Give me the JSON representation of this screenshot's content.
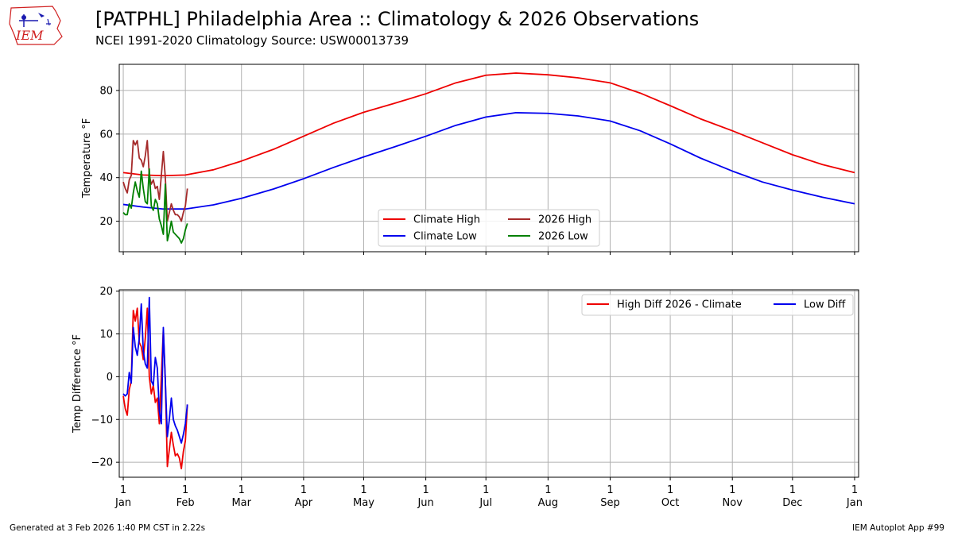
{
  "header": {
    "title": "[PATPHL] Philadelphia Area :: Climatology & 2026 Observations",
    "subtitle": "NCEI 1991-2020 Climatology Source: USW00013739",
    "logo_text": "IEM"
  },
  "footer": {
    "left": "Generated at 3 Feb 2026 1:40 PM CST in 2.22s",
    "right": "IEM Autoplot App #99"
  },
  "colors": {
    "climate_high": "#ee0000",
    "climate_low": "#0000ee",
    "obs_high": "#a52a2a",
    "obs_low": "#008000",
    "grid": "#b0b0b0"
  },
  "chart_data": [
    {
      "type": "line",
      "ylabel": "Temperature °F",
      "ylim": [
        6,
        92
      ],
      "yticks": [
        20,
        40,
        60,
        80
      ],
      "xlim": [
        -2,
        367
      ],
      "grid": true,
      "legend_position": "lower-center",
      "legend_columns": 2,
      "x_ticks": [
        {
          "day": 0,
          "label": "1",
          "month": "Jan"
        },
        {
          "day": 31,
          "label": "1",
          "month": "Feb"
        },
        {
          "day": 59,
          "label": "1",
          "month": "Mar"
        },
        {
          "day": 90,
          "label": "1",
          "month": "Apr"
        },
        {
          "day": 120,
          "label": "1",
          "month": "May"
        },
        {
          "day": 151,
          "label": "1",
          "month": "Jun"
        },
        {
          "day": 181,
          "label": "1",
          "month": "Jul"
        },
        {
          "day": 212,
          "label": "1",
          "month": "Aug"
        },
        {
          "day": 243,
          "label": "1",
          "month": "Sep"
        },
        {
          "day": 273,
          "label": "1",
          "month": "Oct"
        },
        {
          "day": 304,
          "label": "1",
          "month": "Nov"
        },
        {
          "day": 334,
          "label": "1",
          "month": "Dec"
        },
        {
          "day": 365,
          "label": "1",
          "month": "Jan"
        }
      ],
      "series": [
        {
          "name": "Climate High",
          "color_key": "climate_high",
          "x": [
            0,
            10,
            20,
            31,
            45,
            59,
            75,
            90,
            105,
            120,
            135,
            151,
            166,
            181,
            196,
            212,
            227,
            243,
            258,
            273,
            288,
            304,
            319,
            334,
            349,
            365
          ],
          "y": [
            42.3,
            41.2,
            40.9,
            41.2,
            43.6,
            47.6,
            53.0,
            59.0,
            65.0,
            70.0,
            74.0,
            78.5,
            83.5,
            87.0,
            88.0,
            87.2,
            85.8,
            83.5,
            78.8,
            73.0,
            67.0,
            61.5,
            56.0,
            50.5,
            46.0,
            42.3
          ]
        },
        {
          "name": "Climate Low",
          "color_key": "climate_low",
          "x": [
            0,
            10,
            20,
            31,
            45,
            59,
            75,
            90,
            105,
            120,
            135,
            151,
            166,
            181,
            196,
            212,
            227,
            243,
            258,
            273,
            288,
            304,
            319,
            334,
            349,
            365
          ],
          "y": [
            27.7,
            26.5,
            25.6,
            25.6,
            27.5,
            30.5,
            34.8,
            39.5,
            44.7,
            49.5,
            54.0,
            59.0,
            64.0,
            67.8,
            69.8,
            69.5,
            68.3,
            66.0,
            61.5,
            55.5,
            49.0,
            43.0,
            38.0,
            34.3,
            31.0,
            28.0
          ]
        },
        {
          "name": "2026 High",
          "color_key": "obs_high",
          "x": [
            0,
            1,
            2,
            3,
            4,
            5,
            6,
            7,
            8,
            9,
            10,
            11,
            12,
            13,
            14,
            15,
            16,
            17,
            18,
            19,
            20,
            21,
            22,
            23,
            24,
            25,
            26,
            27,
            28,
            29,
            30,
            31,
            32
          ],
          "y": [
            38,
            35,
            33,
            39,
            41,
            57,
            55,
            57,
            49,
            48,
            45,
            50,
            57,
            41,
            37,
            39,
            35,
            36,
            30,
            41,
            52,
            40,
            20,
            24,
            28,
            25,
            23,
            23,
            22,
            20,
            24,
            27,
            35
          ]
        },
        {
          "name": "2026 Low",
          "color_key": "obs_low",
          "x": [
            0,
            1,
            2,
            3,
            4,
            5,
            6,
            7,
            8,
            9,
            10,
            11,
            12,
            13,
            14,
            15,
            16,
            17,
            18,
            19,
            20,
            21,
            22,
            23,
            24,
            25,
            26,
            27,
            28,
            29,
            30,
            31,
            32
          ],
          "y": [
            24,
            23,
            23,
            28,
            26,
            33,
            38,
            34,
            31,
            43,
            35,
            29,
            28,
            44,
            27,
            25,
            30,
            28,
            21,
            18,
            14,
            37,
            11,
            15,
            20,
            15,
            14,
            13,
            12,
            10,
            12,
            16,
            19
          ]
        }
      ]
    },
    {
      "type": "line",
      "ylabel": "Temp Difference °F",
      "ylim": [
        -23.5,
        20.3
      ],
      "yticks": [
        -20,
        -10,
        0,
        10,
        20
      ],
      "xlim": [
        -2,
        367
      ],
      "grid": true,
      "legend_position": "upper-right",
      "legend_columns": 2,
      "series": [
        {
          "name": "High Diff 2026 - Climate",
          "color_key": "climate_high",
          "x": [
            0,
            1,
            2,
            3,
            4,
            5,
            6,
            7,
            8,
            9,
            10,
            11,
            12,
            13,
            14,
            15,
            16,
            17,
            18,
            19,
            20,
            21,
            22,
            23,
            24,
            25,
            26,
            27,
            28,
            29,
            30,
            31,
            32
          ],
          "y": [
            -4.5,
            -7.5,
            -9,
            -3,
            -1,
            15.5,
            13,
            16,
            8,
            7,
            4,
            9,
            16,
            0,
            -4,
            -2,
            -6,
            -5,
            -11,
            0,
            11,
            -1,
            -21,
            -17,
            -13,
            -16,
            -18.5,
            -18,
            -19,
            -21.5,
            -17.5,
            -15,
            -6.5
          ]
        },
        {
          "name": "Low Diff",
          "color_key": "climate_low",
          "x": [
            0,
            1,
            2,
            3,
            4,
            5,
            6,
            7,
            8,
            9,
            10,
            11,
            12,
            13,
            14,
            15,
            16,
            17,
            18,
            19,
            20,
            21,
            22,
            23,
            24,
            25,
            26,
            27,
            28,
            29,
            30,
            31,
            32
          ],
          "y": [
            -4,
            -4.5,
            -4,
            1,
            -1.5,
            11.5,
            7,
            5,
            9,
            17,
            6,
            3,
            2,
            18.5,
            -1,
            -2,
            4.5,
            2,
            -8,
            -11,
            11.5,
            -1,
            -14,
            -10,
            -5,
            -10,
            -11.5,
            -12.5,
            -14,
            -15.5,
            -13.5,
            -11,
            -6.5
          ]
        }
      ]
    }
  ]
}
